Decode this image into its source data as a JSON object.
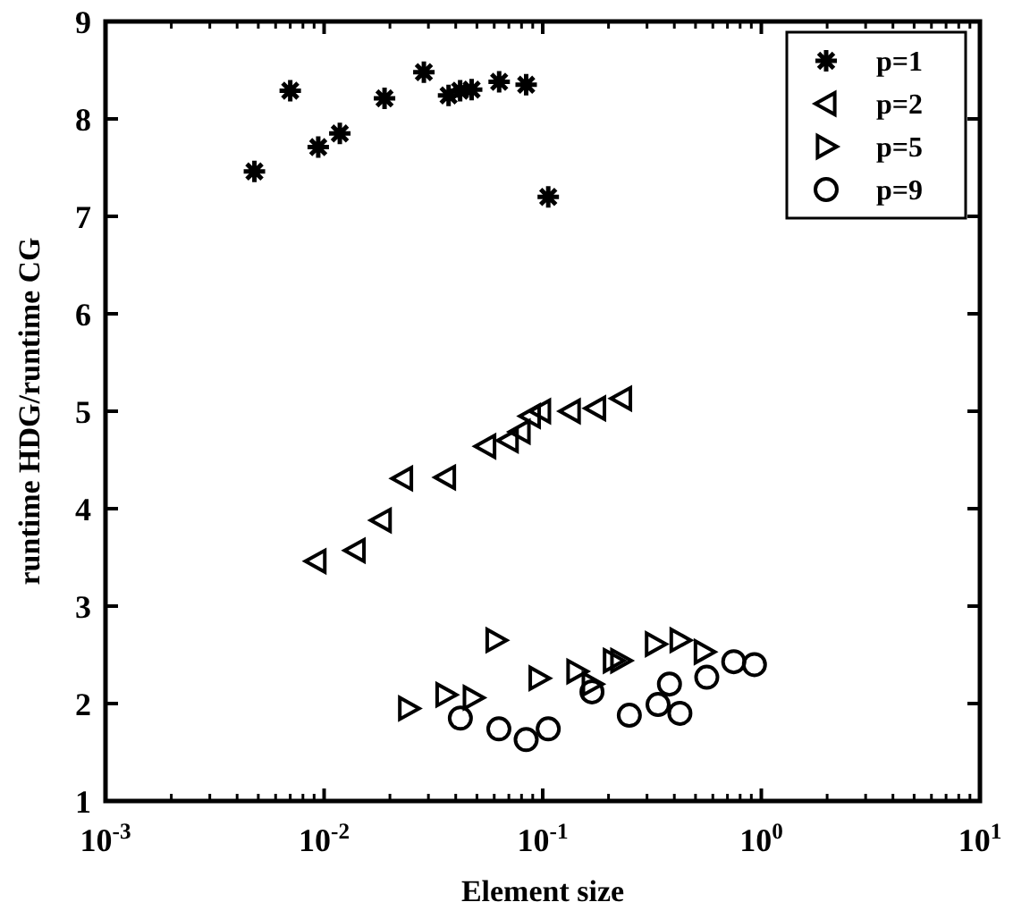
{
  "chart_data": {
    "type": "scatter",
    "xlabel": "Element size",
    "ylabel": "runtime HDG/runtime CG",
    "log": "x",
    "xlim": [
      0.001,
      10
    ],
    "xticks": [
      {
        "value": 0.001,
        "label": "10$^{-3}$"
      },
      {
        "value": 0.01,
        "label": "10$^{-2}$"
      },
      {
        "value": 0.1,
        "label": "10$^{-1}$"
      },
      {
        "value": 1,
        "label": "10$^{0}$"
      },
      {
        "value": 10,
        "label": "10$^{1}$"
      }
    ],
    "ylim": [
      1,
      9
    ],
    "yticks": [
      1,
      2,
      3,
      4,
      5,
      6,
      7,
      8,
      9
    ],
    "grid": false,
    "legend": "top right",
    "series": [
      {
        "name": "p=1",
        "color": "#000000",
        "marker": "cross",
        "x": [
          0.0048,
          0.007,
          0.0094,
          0.0118,
          0.0189,
          0.0286,
          0.0371,
          0.0419,
          0.0473,
          0.0632,
          0.084,
          0.106
        ],
        "values": [
          7.46,
          8.29,
          7.71,
          7.85,
          8.21,
          8.48,
          8.24,
          8.29,
          8.3,
          8.38,
          8.35,
          7.2
        ]
      },
      {
        "name": "p=2",
        "color": "#000000",
        "marker": "triangle-left",
        "x": [
          0.0092,
          0.0139,
          0.0183,
          0.0229,
          0.036,
          0.055,
          0.0697,
          0.079,
          0.088,
          0.098,
          0.134,
          0.175,
          0.23
        ],
        "values": [
          3.46,
          3.57,
          3.88,
          4.31,
          4.32,
          4.64,
          4.7,
          4.79,
          4.95,
          5.0,
          5.0,
          5.03,
          5.13
        ]
      },
      {
        "name": "p=5",
        "color": "#000000",
        "marker": "triangle-right",
        "x": [
          0.0243,
          0.036,
          0.048,
          0.061,
          0.096,
          0.143,
          0.168,
          0.21,
          0.227,
          0.327,
          0.424,
          0.547
        ],
        "values": [
          1.95,
          2.09,
          2.06,
          2.65,
          2.26,
          2.33,
          2.2,
          2.44,
          2.44,
          2.61,
          2.65,
          2.53
        ]
      },
      {
        "name": "p=9",
        "color": "#000000",
        "marker": "circle",
        "x": [
          0.042,
          0.063,
          0.084,
          0.106,
          0.168,
          0.249,
          0.337,
          0.38,
          0.424,
          0.563,
          0.748,
          0.93
        ],
        "values": [
          1.85,
          1.74,
          1.63,
          1.74,
          2.12,
          1.88,
          1.99,
          2.2,
          1.9,
          2.27,
          2.43,
          2.4
        ]
      }
    ]
  }
}
